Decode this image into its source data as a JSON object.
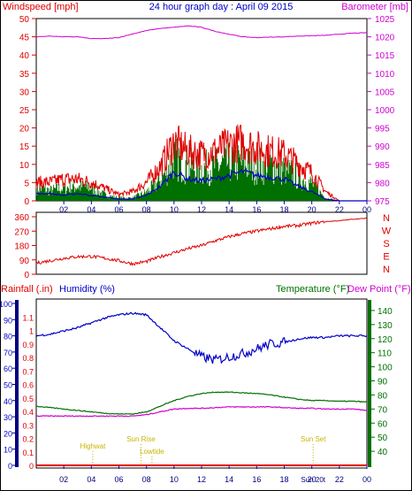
{
  "colors": {
    "red": "#e00000",
    "blue": "#0000c8",
    "magenta": "#d000d0",
    "green": "#007000",
    "navy": "#000080",
    "yellow": "#c8b400",
    "frame": "#000000"
  },
  "chart_data": [
    {
      "type": "line",
      "title": "24 hour graph day : April 09 2015",
      "ylabel": "Windspeed [mph]",
      "y2label": "Barometer [mb]",
      "ylim": [
        0,
        50
      ],
      "y2lim": [
        975,
        1025
      ],
      "yticks": [
        "0",
        "5",
        "10",
        "15",
        "20",
        "25",
        "30",
        "35",
        "40",
        "45",
        "50"
      ],
      "y2ticks": [
        "975",
        "980",
        "985",
        "990",
        "995",
        "1000",
        "1005",
        "1010",
        "1015",
        "1020",
        "1025"
      ],
      "xticks": [
        "02",
        "04",
        "06",
        "08",
        "10",
        "12",
        "14",
        "16",
        "18",
        "20",
        "22",
        "00"
      ],
      "xticks_hours": [
        2,
        4,
        6,
        8,
        10,
        12,
        14,
        16,
        18,
        20,
        22,
        24
      ],
      "series": [
        {
          "name": "Windspeed [mph]",
          "axis": "left",
          "x": [
            0,
            1,
            2,
            3,
            4,
            5,
            6,
            7,
            8,
            9,
            10,
            11,
            12,
            13,
            14,
            15,
            16,
            17,
            18,
            19,
            20,
            21,
            22,
            23,
            24
          ],
          "values": [
            4.5,
            3.5,
            4.5,
            5,
            4.5,
            2,
            1,
            1,
            3,
            7,
            15,
            12,
            11,
            12,
            13,
            13,
            12,
            12,
            11,
            8,
            6,
            1,
            0,
            0,
            0
          ]
        },
        {
          "name": "Gust [mph]",
          "axis": "left",
          "x": [
            0,
            1,
            2,
            3,
            4,
            5,
            6,
            7,
            8,
            9,
            10,
            11,
            12,
            13,
            14,
            15,
            16,
            17,
            18,
            19,
            20,
            21,
            22,
            23,
            24
          ],
          "values": [
            6,
            6,
            7,
            7,
            6,
            4,
            2,
            3,
            6,
            11,
            19,
            16,
            15,
            16,
            18,
            19,
            17,
            16,
            15,
            12,
            9,
            3,
            0,
            0,
            0
          ]
        },
        {
          "name": "Average [mph]",
          "axis": "left",
          "x": [
            0,
            1,
            2,
            3,
            4,
            5,
            6,
            7,
            8,
            9,
            10,
            11,
            12,
            13,
            14,
            15,
            16,
            17,
            18,
            19,
            20,
            21,
            22,
            23,
            24
          ],
          "values": [
            2,
            2,
            1.5,
            2,
            1.5,
            1,
            0.5,
            0.5,
            1.5,
            4,
            8,
            6,
            5.5,
            6,
            7,
            8,
            7,
            6.5,
            6,
            4,
            2.5,
            0.5,
            0,
            0,
            0
          ]
        },
        {
          "name": "Barometer [mb]",
          "axis": "right",
          "x": [
            0,
            1,
            2,
            3,
            4,
            5,
            6,
            7,
            8,
            9,
            10,
            11,
            12,
            13,
            14,
            15,
            16,
            17,
            18,
            19,
            20,
            21,
            22,
            23,
            24
          ],
          "values": [
            1020,
            1020.2,
            1020,
            1020,
            1019.5,
            1019.5,
            1019.8,
            1020.8,
            1021.7,
            1022.3,
            1022.6,
            1023,
            1022.6,
            1021.5,
            1020.7,
            1020,
            1019.8,
            1019.9,
            1020,
            1020.2,
            1020.3,
            1020.4,
            1020.7,
            1021,
            1021.1
          ]
        }
      ]
    },
    {
      "type": "line",
      "ylabel": "Wind direction [deg]",
      "ylim": [
        0,
        360
      ],
      "yticks": [
        "0",
        "90",
        "180",
        "270",
        "360"
      ],
      "compass": [
        "N",
        "W",
        "S",
        "E",
        "N"
      ],
      "xticks": [
        "02",
        "04",
        "06",
        "08",
        "10",
        "12",
        "14",
        "16",
        "18",
        "20",
        "22",
        "00"
      ],
      "series": [
        {
          "name": "Wind direction",
          "x": [
            0,
            1,
            2,
            3,
            4,
            5,
            6,
            7,
            8,
            9,
            10,
            11,
            12,
            13,
            14,
            15,
            16,
            17,
            18,
            19,
            20,
            21,
            22,
            23,
            24
          ],
          "values": [
            70,
            85,
            100,
            110,
            112,
            100,
            85,
            65,
            80,
            110,
            135,
            160,
            180,
            210,
            235,
            255,
            270,
            285,
            300,
            305,
            320,
            330,
            335,
            345,
            350
          ]
        }
      ]
    },
    {
      "type": "line",
      "ylabel": "Rainfall (.in)",
      "ylabel2": "Humidity (%)",
      "y2label": "Temperature (°F)",
      "y2label2": "Dew Point (°F)",
      "ylim": [
        0,
        100
      ],
      "rain_ticks": [
        "0",
        "0.1",
        "0.2",
        "0.3",
        "0.4",
        "0.5",
        "0.6",
        "0.7",
        "0.8",
        "0.9",
        "1",
        "1.1"
      ],
      "humidity_ticks": [
        "0",
        "10",
        "20",
        "30",
        "40",
        "50",
        "60",
        "70",
        "80",
        "90",
        "100"
      ],
      "y2lim": [
        30,
        145
      ],
      "y2ticks": [
        "40",
        "50",
        "60",
        "70",
        "80",
        "90",
        "100",
        "110",
        "120",
        "130",
        "140"
      ],
      "xticks": [
        "02",
        "04",
        "06",
        "08",
        "10",
        "12",
        "14",
        "16",
        "18",
        "20",
        "22",
        "00"
      ],
      "annotations": [
        {
          "text": "Highwat",
          "hour": 4.1
        },
        {
          "text": "Sun Rise",
          "hour": 7.6
        },
        {
          "text": "Lowtide",
          "hour": 8.4
        },
        {
          "text": "Sun Set",
          "hour": 20.1
        },
        {
          "text": "Sun 20t",
          "hour": 20.1
        }
      ],
      "series": [
        {
          "name": "Humidity (%)",
          "axis": "left",
          "x": [
            0,
            1,
            2,
            3,
            4,
            5,
            6,
            7,
            8,
            9,
            10,
            11,
            12,
            13,
            14,
            15,
            16,
            17,
            18,
            19,
            20,
            21,
            22,
            23,
            24
          ],
          "values": [
            80,
            81,
            83,
            85,
            88,
            91,
            93,
            94,
            93,
            85,
            77,
            72,
            67,
            65,
            67,
            69,
            72,
            75,
            76,
            78,
            79,
            79,
            80,
            80,
            80
          ]
        },
        {
          "name": "Temperature (°F)",
          "axis": "right",
          "x": [
            0,
            1,
            2,
            3,
            4,
            5,
            6,
            7,
            8,
            9,
            10,
            11,
            12,
            13,
            14,
            15,
            16,
            17,
            18,
            19,
            20,
            21,
            22,
            23,
            24
          ],
          "values": [
            72,
            71,
            70,
            69,
            68,
            67,
            66.5,
            66.5,
            68,
            72,
            76,
            79,
            81,
            82,
            82,
            81.5,
            81,
            80,
            78.5,
            77,
            76,
            76,
            75.5,
            75.5,
            75
          ]
        },
        {
          "name": "Dew Point (°F)",
          "axis": "right",
          "x": [
            0,
            1,
            2,
            3,
            4,
            5,
            6,
            7,
            8,
            9,
            10,
            11,
            12,
            13,
            14,
            15,
            16,
            17,
            18,
            19,
            20,
            21,
            22,
            23,
            24
          ],
          "values": [
            65,
            65,
            65,
            65,
            65,
            65,
            65,
            65,
            66,
            68,
            70,
            70.5,
            70.5,
            71,
            71.5,
            71.5,
            71.5,
            71.5,
            71,
            70.5,
            70.5,
            70,
            70,
            70,
            69
          ]
        },
        {
          "name": "Rainfall (.in)",
          "axis": "left",
          "x": [
            0,
            24
          ],
          "values": [
            0,
            0
          ]
        }
      ]
    }
  ]
}
